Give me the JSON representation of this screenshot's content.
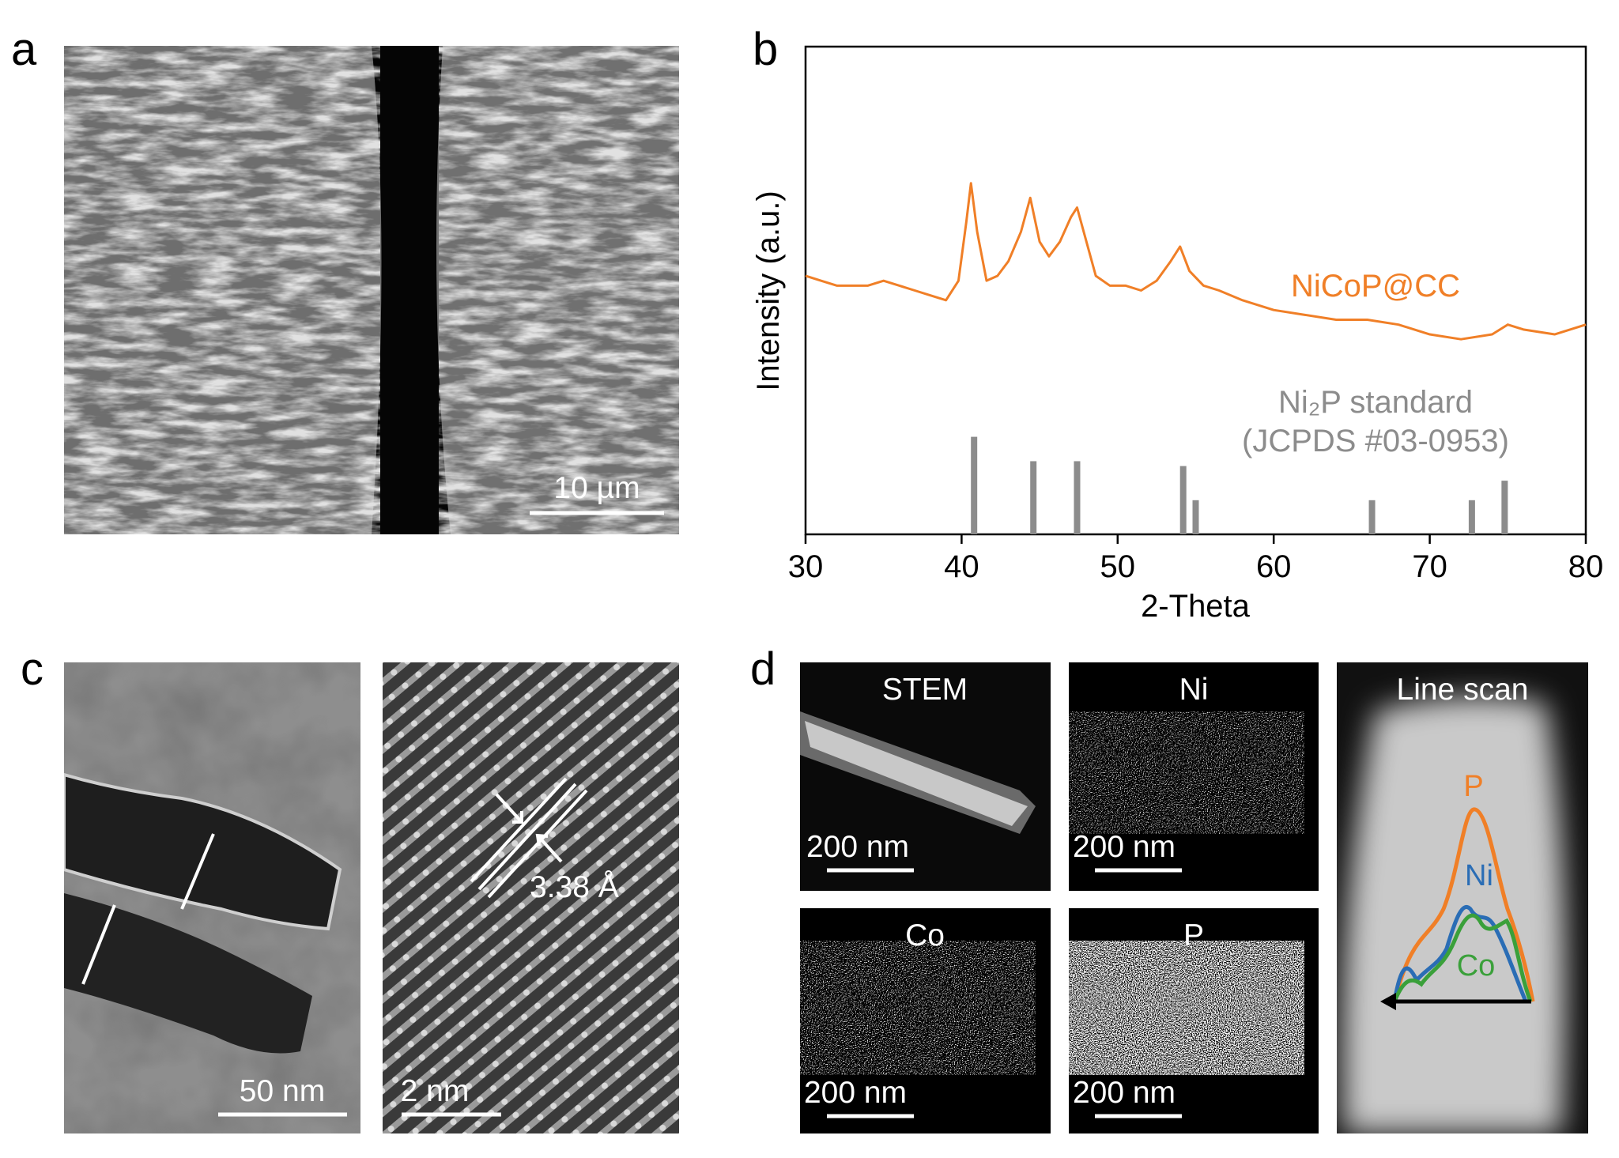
{
  "panel_labels": [
    "a",
    "b",
    "c",
    "d"
  ],
  "panel_a": {
    "scale_bar": "10 µm"
  },
  "panel_c": {
    "scale_bars": [
      "50 nm",
      "2 nm"
    ],
    "d_spacing": "3.38 Å"
  },
  "panel_d": {
    "tiles": [
      {
        "title": "STEM",
        "scale_bar": "200 nm"
      },
      {
        "title": "Ni",
        "scale_bar": "200 nm"
      },
      {
        "title": "Co",
        "scale_bar": "200 nm"
      },
      {
        "title": "P",
        "scale_bar": "200 nm"
      }
    ],
    "line_scan": {
      "title": "Line scan",
      "profiles": [
        "P",
        "Ni",
        "Co"
      ]
    }
  },
  "chart_data": {
    "type": "line",
    "x_label": "2-Theta",
    "y_label": "Intensity (a.u.)",
    "xlim": [
      30,
      80
    ],
    "xticks": [
      30,
      40,
      50,
      60,
      70,
      80
    ],
    "ylim": [
      0,
      100
    ],
    "series": [
      {
        "name": "NiCoP@CC",
        "type": "line",
        "color": "#f07f27",
        "x": [
          30,
          31,
          32,
          33,
          34,
          35,
          36,
          37,
          38,
          39,
          39.8,
          40.3,
          40.6,
          41,
          41.6,
          42.3,
          43,
          43.8,
          44.4,
          45,
          45.6,
          46.3,
          47,
          47.4,
          48,
          48.6,
          49.5,
          50.5,
          51.5,
          52.5,
          53.4,
          54,
          54.6,
          55.5,
          56.5,
          58,
          60,
          62,
          64,
          66,
          68,
          70,
          72,
          74,
          75,
          76,
          78,
          80
        ],
        "values": [
          53,
          52,
          51,
          51,
          51,
          52,
          51,
          50,
          49,
          48,
          52,
          64,
          72,
          62,
          52,
          53,
          56,
          62,
          69,
          60,
          57,
          60,
          65,
          67,
          60,
          53,
          51,
          51,
          50,
          52,
          56,
          59,
          54,
          51,
          50,
          48,
          46,
          45,
          44,
          44,
          43,
          41,
          40,
          41,
          43,
          42,
          41,
          43
        ]
      },
      {
        "name": "Ni₂P standard",
        "reference": "(JCPDS #03-0953)",
        "type": "stick",
        "color": "#8c8c8c",
        "x": [
          40.8,
          44.6,
          47.4,
          54.2,
          55,
          66.3,
          72.7,
          74.8
        ],
        "values": [
          20,
          15,
          15,
          14,
          7,
          7,
          7,
          11
        ]
      }
    ]
  }
}
